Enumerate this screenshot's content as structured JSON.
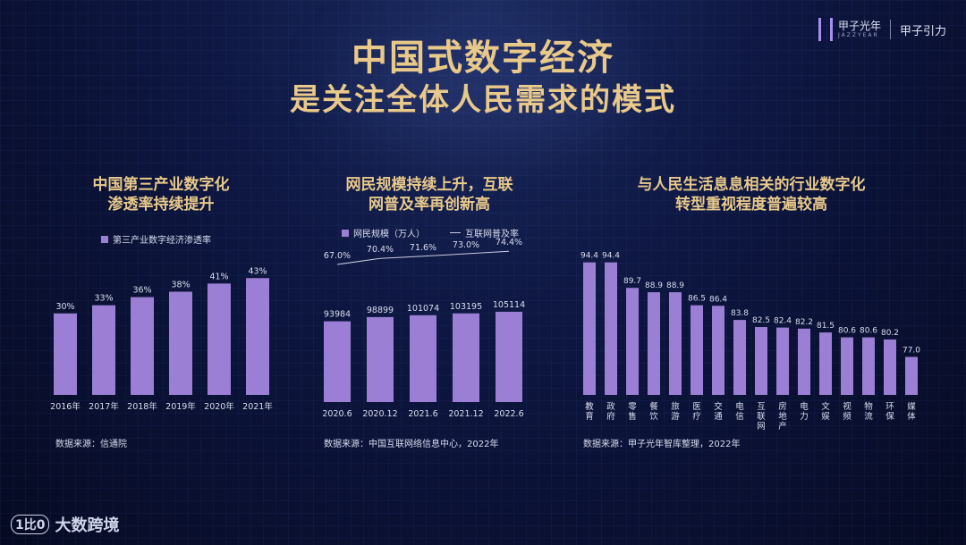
{
  "title": {
    "line1": "中国式数字经济",
    "line2": "是关注全体人民需求的模式"
  },
  "brand": {
    "name": "甲子光年",
    "sub": "JAZZYEAR",
    "partner": "甲子引力"
  },
  "footer": {
    "logo_mark": "1比0",
    "logo_text": "大数跨境"
  },
  "colors": {
    "bar": "#9b7fd4",
    "accent_title": "#e9c98a",
    "text": "#d9def0"
  },
  "chart_data": [
    {
      "type": "bar",
      "title_lines": [
        "中国第三产业数字化",
        "渗透率持续提升"
      ],
      "legend": "第三产业数字经济渗透率",
      "categories": [
        "2016年",
        "2017年",
        "2018年",
        "2019年",
        "2020年",
        "2021年"
      ],
      "values": [
        30,
        33,
        36,
        38,
        41,
        43
      ],
      "value_labels": [
        "30%",
        "33%",
        "36%",
        "38%",
        "41%",
        "43%"
      ],
      "ylim": [
        0,
        50
      ],
      "source": "数据来源：信通院"
    },
    {
      "type": "bar",
      "title_lines": [
        "网民规模持续上升，互联",
        "网普及率再创新高"
      ],
      "legend": "网民规模（万人）",
      "legend_line": "互联网普及率",
      "categories": [
        "2020.6",
        "2020.12",
        "2021.6",
        "2021.12",
        "2022.6"
      ],
      "values": [
        93984,
        98899,
        101074,
        103195,
        105114
      ],
      "value_labels": [
        "93984",
        "98899",
        "101074",
        "103195",
        "105114"
      ],
      "line_values": [
        67.0,
        70.4,
        71.6,
        73.0,
        74.4
      ],
      "line_labels": [
        "67.0%",
        "70.4%",
        "71.6%",
        "73.0%",
        "74.4%"
      ],
      "ylim": [
        0,
        130000
      ],
      "source": "数据来源：中国互联网络信息中心，2022年"
    },
    {
      "type": "bar",
      "title_lines": [
        "与人民生活息息相关的行业数字化",
        "转型重视程度普遍较高"
      ],
      "categories": [
        "教育",
        "政府",
        "零售",
        "餐饮",
        "旅游",
        "医疗",
        "交通",
        "电信",
        "互联网",
        "房地产",
        "电力",
        "文娱",
        "视频",
        "物流",
        "环保",
        "媒体"
      ],
      "values": [
        94.4,
        94.4,
        89.7,
        88.9,
        88.9,
        86.5,
        86.4,
        83.8,
        82.5,
        82.4,
        82.2,
        81.5,
        80.6,
        80.6,
        80.2,
        77.0
      ],
      "value_labels": [
        "94.4",
        "94.4",
        "89.7",
        "88.9",
        "88.9",
        "86.5",
        "86.4",
        "83.8",
        "82.5",
        "82.4",
        "82.2",
        "81.5",
        "80.6",
        "80.6",
        "80.2",
        "77.0"
      ],
      "ylim": [
        70,
        95
      ],
      "source": "数据来源：甲子光年智库整理，2022年"
    }
  ]
}
